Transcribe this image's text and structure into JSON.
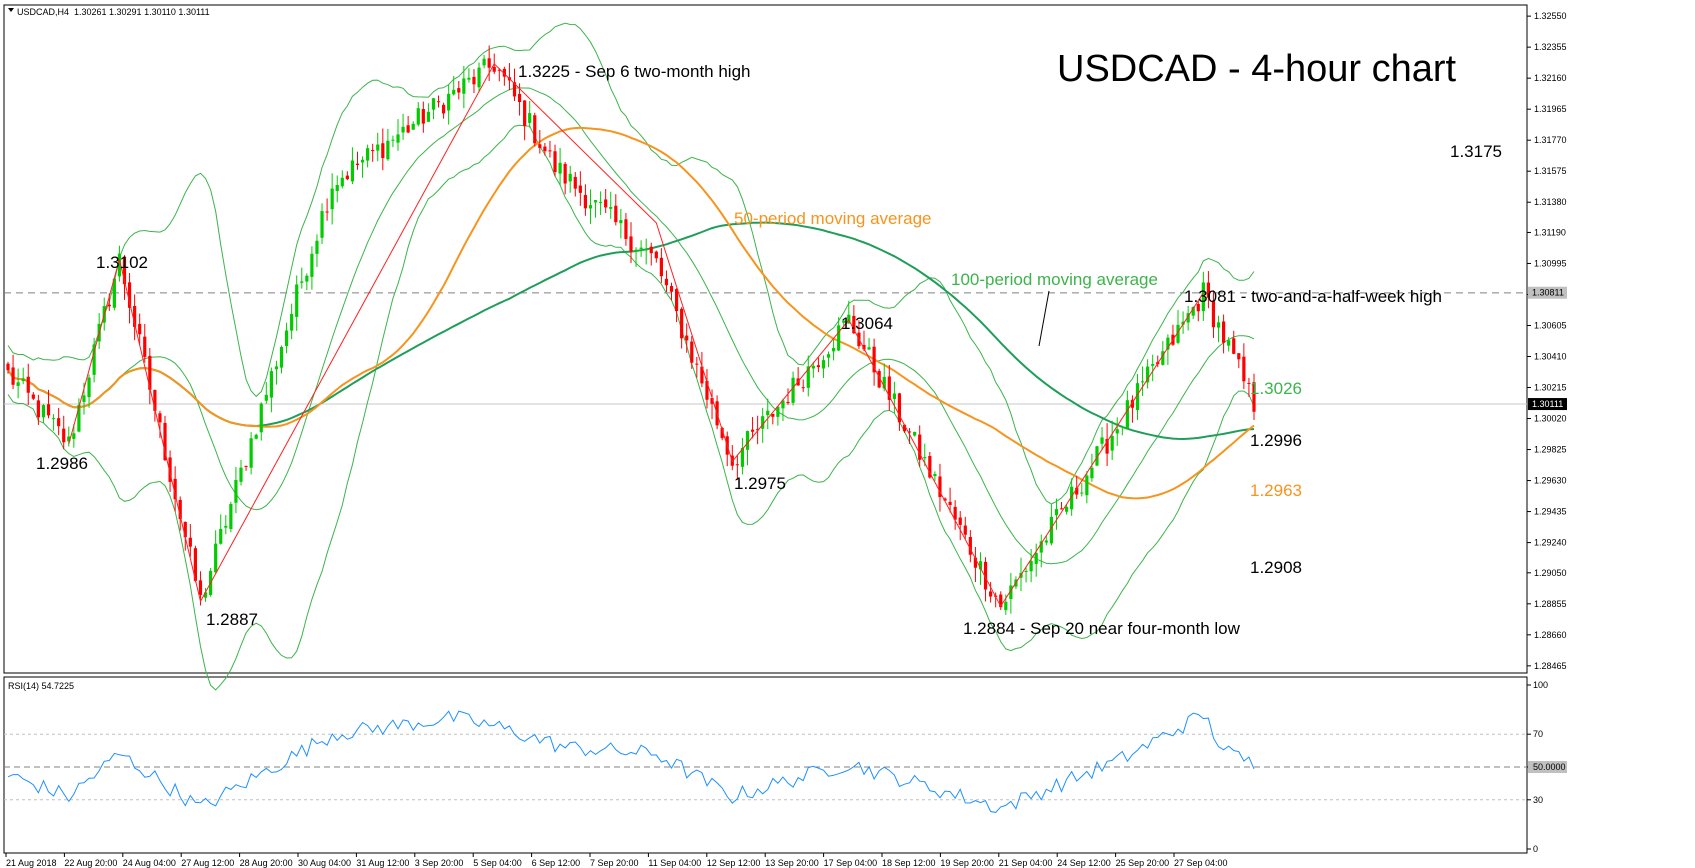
{
  "header": {
    "symbol": "USDCAD,H4",
    "ohlc": "1.30261 1.30291 1.30110 1.30111",
    "rsi_label": "RSI(14) 54.7225"
  },
  "colors": {
    "bull": "#00cc00",
    "bear": "#ff0000",
    "band": "#3cb44b",
    "ma50": "#f7941d",
    "ma100": "#1f9e5a",
    "rsi": "#1e90ff"
  },
  "chart_data": {
    "type": "candlestick",
    "title": "USDCAD - 4-hour chart",
    "y_ticks": [
      "1.32550",
      "1.32355",
      "1.32160",
      "1.31965",
      "1.31770",
      "1.31575",
      "1.31380",
      "1.31190",
      "1.30995",
      "1.30800",
      "1.30605",
      "1.30410",
      "1.30215",
      "1.30020",
      "1.29825",
      "1.29630",
      "1.29435",
      "1.29240",
      "1.29050",
      "1.28855",
      "1.28660",
      "1.28465"
    ],
    "ylim": [
      1.2842,
      1.3262
    ],
    "price_labels": [
      "1.30811",
      "1.30111"
    ],
    "x_ticks": [
      "21 Aug 2018",
      "22 Aug 20:00",
      "24 Aug 04:00",
      "27 Aug 12:00",
      "28 Aug 20:00",
      "30 Aug 04:00",
      "31 Aug 12:00",
      "3 Sep 20:00",
      "5 Sep 04:00",
      "6 Sep 12:00",
      "7 Sep 20:00",
      "11 Sep 04:00",
      "12 Sep 12:00",
      "13 Sep 20:00",
      "17 Sep 04:00",
      "18 Sep 12:00",
      "19 Sep 20:00",
      "21 Sep 04:00",
      "24 Sep 12:00",
      "25 Sep 20:00",
      "27 Sep 04:00"
    ],
    "resistance_level": 1.3081,
    "annotations": {
      "a1": "1.3225 - Sep 6 two-month high",
      "a2": "1.3102",
      "a3": "1.2986",
      "a4": "1.2887",
      "a5": "1.3064",
      "a6": "1.2975",
      "a7": "1.2884 - Sep 20 near four-month low",
      "a8": "1.3081 - two-and-a-half-week high",
      "a9": "1.3175",
      "a10": "1.3026",
      "a11": "1.2996",
      "a12": "1.2963",
      "a13": "1.2908",
      "ma50_label": "50-period moving average",
      "ma100_label": "100-period moving average"
    },
    "rsi_ticks": [
      "100",
      "70",
      "50.0000",
      "30",
      "0"
    ],
    "rsi_ylim": [
      0,
      100
    ],
    "waypoints_close": [
      [
        0,
        1.303
      ],
      [
        12,
        1.2986
      ],
      [
        22,
        1.3102
      ],
      [
        38,
        1.2887
      ],
      [
        64,
        1.315
      ],
      [
        96,
        1.3225
      ],
      [
        108,
        1.316
      ],
      [
        128,
        1.31
      ],
      [
        143,
        1.2975
      ],
      [
        166,
        1.3064
      ],
      [
        196,
        1.2884
      ],
      [
        236,
        1.3081
      ],
      [
        246,
        1.3011
      ]
    ],
    "rsi_waypoints": [
      [
        0,
        45
      ],
      [
        12,
        32
      ],
      [
        22,
        58
      ],
      [
        38,
        25
      ],
      [
        64,
        70
      ],
      [
        88,
        80
      ],
      [
        96,
        75
      ],
      [
        110,
        62
      ],
      [
        128,
        58
      ],
      [
        143,
        32
      ],
      [
        166,
        52
      ],
      [
        196,
        25
      ],
      [
        220,
        55
      ],
      [
        236,
        82
      ],
      [
        240,
        60
      ],
      [
        246,
        52
      ]
    ],
    "red_zigzag": [
      [
        12,
        1.2986
      ],
      [
        22,
        1.3102
      ],
      [
        38,
        1.2887
      ],
      [
        96,
        1.3225
      ],
      [
        128,
        1.3125
      ],
      [
        143,
        1.2975
      ],
      [
        166,
        1.3064
      ],
      [
        196,
        1.2884
      ],
      [
        236,
        1.3081
      ]
    ]
  }
}
